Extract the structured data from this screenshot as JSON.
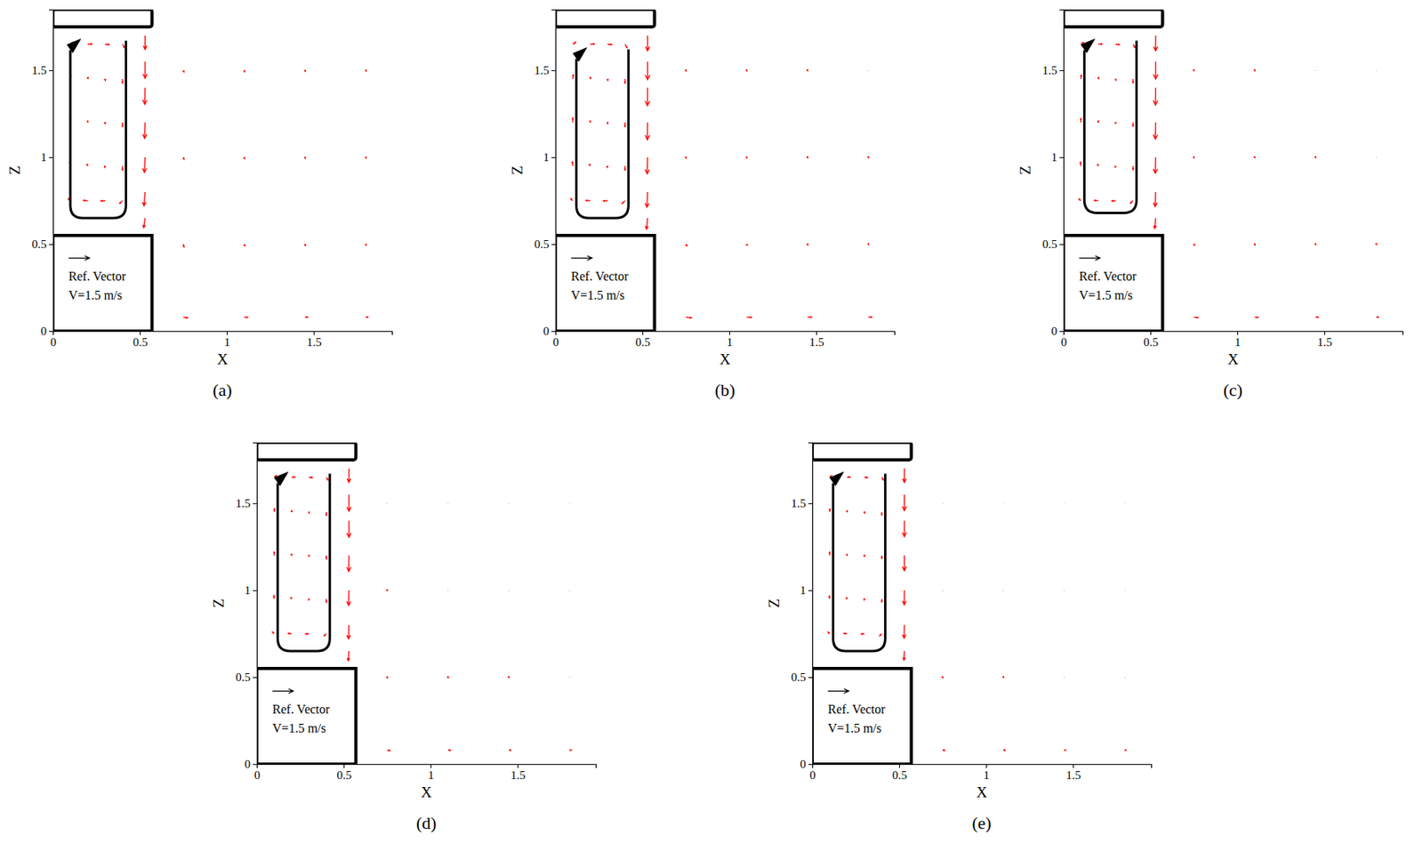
{
  "chart_data": [
    {
      "type": "quiver",
      "label": "(a)",
      "xlabel": "X",
      "ylabel": "Z",
      "color": "#ff0000",
      "xlim": [
        0,
        1.95
      ],
      "ylim": [
        0,
        1.85
      ],
      "xticks": [
        0,
        0.5,
        1,
        1.5
      ],
      "yticks": [
        0,
        0.5,
        1,
        1.5
      ],
      "ref_vector": {
        "label": "Ref. Vector",
        "value": 1.5,
        "value_label": "V=1.5 m/s"
      },
      "obstacles": [
        {
          "x": [
            0,
            0.57
          ],
          "y": [
            0,
            0.55
          ]
        },
        {
          "x": [
            0,
            0.57
          ],
          "y": [
            1.75,
            1.85
          ]
        }
      ],
      "loop": {
        "x": [
          0.1,
          0.42
        ],
        "y": [
          0.65,
          1.67
        ]
      },
      "x": [
        0.1,
        0.1,
        0.1,
        0.1,
        0.1,
        0.2,
        0.2,
        0.2,
        0.2,
        0.2,
        0.3,
        0.3,
        0.3,
        0.3,
        0.3,
        0.4,
        0.4,
        0.4,
        0.4,
        0.4,
        0.53,
        0.53,
        0.53,
        0.53,
        0.53,
        0.53,
        0.53,
        0.75,
        0.75,
        0.75,
        0.75,
        1.1,
        1.1,
        1.1,
        1.1,
        1.45,
        1.45,
        1.45,
        1.45,
        1.8,
        1.8,
        1.8,
        1.8
      ],
      "y": [
        0.75,
        0.95,
        1.2,
        1.45,
        1.65,
        0.75,
        0.95,
        1.2,
        1.45,
        1.65,
        0.75,
        0.95,
        1.2,
        1.45,
        1.65,
        0.75,
        0.95,
        1.2,
        1.45,
        1.65,
        1.7,
        1.55,
        1.4,
        1.2,
        1.0,
        0.8,
        0.65,
        0.08,
        0.5,
        1.0,
        1.5,
        0.08,
        0.5,
        1.0,
        1.5,
        0.08,
        0.5,
        1.0,
        1.5,
        0.08,
        0.5,
        1.0,
        1.5
      ],
      "u": [
        -0.15,
        -0.03,
        0,
        0.03,
        0.2,
        -0.3,
        -0.05,
        0,
        0.03,
        0.3,
        -0.3,
        -0.03,
        0,
        0.02,
        0.3,
        -0.2,
        0,
        0,
        0,
        0.15,
        0,
        0,
        -0.02,
        -0.03,
        -0.05,
        -0.08,
        -0.1,
        0.3,
        0.05,
        0.05,
        0.05,
        0.25,
        0.05,
        0.03,
        0.03,
        0.2,
        0.03,
        0.02,
        0.02,
        0.15,
        0.02,
        0.02,
        0.02
      ],
      "v": [
        0.15,
        0.3,
        0.32,
        0.3,
        0.15,
        0.02,
        0.12,
        0.12,
        0.12,
        0.02,
        -0.02,
        -0.1,
        -0.08,
        -0.1,
        -0.03,
        -0.2,
        -0.3,
        -0.3,
        -0.3,
        -0.25,
        -1.0,
        -1.2,
        -1.2,
        -1.15,
        -1.1,
        -1.0,
        -0.7,
        -0.05,
        -0.2,
        -0.15,
        -0.12,
        -0.02,
        -0.12,
        -0.1,
        -0.1,
        0,
        -0.1,
        -0.08,
        -0.08,
        0,
        -0.08,
        -0.06,
        -0.06
      ]
    },
    {
      "type": "quiver",
      "label": "(b)",
      "xlabel": "X",
      "ylabel": "Z",
      "color": "#ff0000",
      "xlim": [
        0,
        1.95
      ],
      "ylim": [
        0,
        1.85
      ],
      "xticks": [
        0,
        0.5,
        1,
        1.5
      ],
      "yticks": [
        0,
        0.5,
        1,
        1.5
      ],
      "ref_vector": {
        "label": "Ref. Vector",
        "value": 1.5,
        "value_label": "V=1.5 m/s"
      },
      "obstacles": [
        {
          "x": [
            0,
            0.57
          ],
          "y": [
            0,
            0.55
          ]
        },
        {
          "x": [
            0,
            0.57
          ],
          "y": [
            1.75,
            1.85
          ]
        }
      ],
      "loop": {
        "x": [
          0.12,
          0.42
        ],
        "y": [
          0.65,
          1.62
        ]
      },
      "x": [
        0.1,
        0.1,
        0.1,
        0.1,
        0.1,
        0.2,
        0.2,
        0.2,
        0.2,
        0.2,
        0.3,
        0.3,
        0.3,
        0.3,
        0.3,
        0.4,
        0.4,
        0.4,
        0.4,
        0.4,
        0.53,
        0.53,
        0.53,
        0.53,
        0.53,
        0.53,
        0.53,
        0.75,
        0.75,
        0.75,
        0.75,
        1.1,
        1.1,
        1.1,
        1.1,
        1.45,
        1.45,
        1.45,
        1.45,
        1.8,
        1.8,
        1.8,
        1.8
      ],
      "y": [
        0.75,
        0.95,
        1.2,
        1.45,
        1.65,
        0.75,
        0.95,
        1.2,
        1.45,
        1.65,
        0.75,
        0.95,
        1.2,
        1.45,
        1.65,
        0.75,
        0.95,
        1.2,
        1.45,
        1.65,
        1.7,
        1.55,
        1.4,
        1.2,
        1.0,
        0.8,
        0.65,
        0.08,
        0.5,
        1.0,
        1.5,
        0.08,
        0.5,
        1.0,
        1.5,
        0.08,
        0.5,
        1.0,
        1.5,
        0.08,
        0.5,
        1.0,
        1.5
      ],
      "u": [
        -0.15,
        -0.03,
        0,
        0.03,
        0.2,
        -0.3,
        -0.05,
        0,
        0.03,
        0.3,
        -0.3,
        -0.03,
        0,
        0.02,
        0.3,
        -0.2,
        0,
        0,
        0,
        0.15,
        0,
        0,
        -0.01,
        -0.02,
        -0.03,
        -0.05,
        -0.08,
        0.4,
        0.08,
        0.03,
        0.02,
        0.35,
        0.04,
        0.02,
        0.02,
        0.3,
        0.03,
        0.02,
        0.01,
        0.25,
        0.02,
        0.01,
        0.01
      ],
      "v": [
        0.15,
        0.3,
        0.32,
        0.3,
        0.15,
        0.02,
        0.12,
        0.12,
        0.12,
        0.02,
        -0.02,
        -0.1,
        -0.08,
        -0.1,
        -0.03,
        -0.2,
        -0.3,
        -0.3,
        -0.3,
        -0.25,
        -1.1,
        -1.3,
        -1.3,
        -1.25,
        -1.2,
        -1.1,
        -0.8,
        -0.05,
        -0.12,
        -0.06,
        -0.05,
        -0.02,
        -0.08,
        -0.05,
        -0.04,
        0,
        -0.06,
        -0.04,
        -0.03,
        0,
        -0.04,
        -0.03,
        -0.02
      ]
    },
    {
      "type": "quiver",
      "label": "(c)",
      "xlabel": "X",
      "ylabel": "Z",
      "color": "#ff0000",
      "xlim": [
        0,
        1.95
      ],
      "ylim": [
        0,
        1.85
      ],
      "xticks": [
        0,
        0.5,
        1,
        1.5
      ],
      "yticks": [
        0,
        0.5,
        1,
        1.5
      ],
      "ref_vector": {
        "label": "Ref. Vector",
        "value": 1.5,
        "value_label": "V=1.5 m/s"
      },
      "obstacles": [
        {
          "x": [
            0,
            0.57
          ],
          "y": [
            0,
            0.55
          ]
        },
        {
          "x": [
            0,
            0.57
          ],
          "y": [
            1.75,
            1.85
          ]
        }
      ],
      "loop": {
        "x": [
          0.12,
          0.42
        ],
        "y": [
          0.68,
          1.67
        ]
      },
      "x": [
        0.1,
        0.1,
        0.1,
        0.1,
        0.1,
        0.2,
        0.2,
        0.2,
        0.2,
        0.2,
        0.3,
        0.3,
        0.3,
        0.3,
        0.3,
        0.4,
        0.4,
        0.4,
        0.4,
        0.4,
        0.53,
        0.53,
        0.53,
        0.53,
        0.53,
        0.53,
        0.53,
        0.75,
        0.75,
        0.75,
        0.75,
        1.1,
        1.1,
        1.1,
        1.1,
        1.45,
        1.45,
        1.45,
        1.45,
        1.8,
        1.8,
        1.8,
        1.8
      ],
      "y": [
        0.75,
        0.95,
        1.2,
        1.45,
        1.65,
        0.75,
        0.95,
        1.2,
        1.45,
        1.65,
        0.75,
        0.95,
        1.2,
        1.45,
        1.65,
        0.75,
        0.95,
        1.2,
        1.45,
        1.65,
        1.7,
        1.55,
        1.4,
        1.2,
        1.0,
        0.8,
        0.65,
        0.08,
        0.5,
        1.0,
        1.5,
        0.08,
        0.5,
        1.0,
        1.5,
        0.08,
        0.5,
        1.0,
        1.5,
        0.08,
        0.5,
        1.0,
        1.5
      ],
      "u": [
        -0.13,
        -0.03,
        0,
        0.03,
        0.18,
        -0.27,
        -0.04,
        0,
        0.03,
        0.27,
        -0.27,
        -0.03,
        0,
        0.02,
        0.27,
        -0.18,
        0,
        0,
        0,
        0.13,
        0,
        0,
        -0.01,
        -0.02,
        -0.03,
        -0.04,
        -0.06,
        0.3,
        0.05,
        0.02,
        0.02,
        0.25,
        0.03,
        0.02,
        0.01,
        0.2,
        0.02,
        0.01,
        0.01,
        0.15,
        0.02,
        0.01,
        0.01
      ],
      "v": [
        0.13,
        0.27,
        0.29,
        0.27,
        0.13,
        0.02,
        0.11,
        0.11,
        0.11,
        0.02,
        -0.02,
        -0.09,
        -0.07,
        -0.09,
        -0.03,
        -0.18,
        -0.27,
        -0.27,
        -0.27,
        -0.22,
        -1.1,
        -1.25,
        -1.25,
        -1.2,
        -1.15,
        -1.05,
        -0.75,
        -0.04,
        -0.08,
        -0.04,
        -0.03,
        -0.02,
        -0.06,
        -0.03,
        -0.03,
        0,
        -0.04,
        -0.03,
        -0.02,
        0,
        -0.03,
        -0.02,
        -0.02
      ]
    },
    {
      "type": "quiver",
      "label": "(d)",
      "xlabel": "X",
      "ylabel": "Z",
      "color": "#ff0000",
      "xlim": [
        0,
        1.95
      ],
      "ylim": [
        0,
        1.85
      ],
      "xticks": [
        0,
        0.5,
        1,
        1.5
      ],
      "yticks": [
        0,
        0.5,
        1,
        1.5
      ],
      "ref_vector": {
        "label": "Ref. Vector",
        "value": 1.5,
        "value_label": "V=1.5 m/s"
      },
      "obstacles": [
        {
          "x": [
            0,
            0.57
          ],
          "y": [
            0,
            0.55
          ]
        },
        {
          "x": [
            0,
            0.57
          ],
          "y": [
            1.75,
            1.85
          ]
        }
      ],
      "loop": {
        "x": [
          0.12,
          0.42
        ],
        "y": [
          0.65,
          1.67
        ]
      },
      "x": [
        0.1,
        0.1,
        0.1,
        0.1,
        0.1,
        0.2,
        0.2,
        0.2,
        0.2,
        0.2,
        0.3,
        0.3,
        0.3,
        0.3,
        0.3,
        0.4,
        0.4,
        0.4,
        0.4,
        0.4,
        0.53,
        0.53,
        0.53,
        0.53,
        0.53,
        0.53,
        0.53,
        0.75,
        0.75,
        0.75,
        0.75,
        1.1,
        1.1,
        1.1,
        1.1,
        1.45,
        1.45,
        1.45,
        1.45,
        1.8,
        1.8,
        1.8,
        1.8
      ],
      "y": [
        0.75,
        0.95,
        1.2,
        1.45,
        1.65,
        0.75,
        0.95,
        1.2,
        1.45,
        1.65,
        0.75,
        0.95,
        1.2,
        1.45,
        1.65,
        0.75,
        0.95,
        1.2,
        1.45,
        1.65,
        1.7,
        1.55,
        1.4,
        1.2,
        1.0,
        0.8,
        0.65,
        0.08,
        0.5,
        1.0,
        1.5,
        0.08,
        0.5,
        1.0,
        1.5,
        0.08,
        0.5,
        1.0,
        1.5,
        0.08,
        0.5,
        1.0,
        1.5
      ],
      "u": [
        -0.12,
        -0.02,
        0,
        0.02,
        0.16,
        -0.24,
        -0.04,
        0,
        0.02,
        0.24,
        -0.24,
        -0.02,
        0,
        0.02,
        0.24,
        -0.16,
        0,
        0,
        0,
        0.12,
        0,
        0,
        0,
        -0.01,
        -0.02,
        -0.03,
        -0.05,
        0.2,
        0.03,
        0.02,
        0.01,
        0.18,
        0.02,
        0.01,
        0.01,
        0.15,
        0.02,
        0.01,
        0.01,
        0.12,
        0.01,
        0.01,
        0.01
      ],
      "v": [
        0.12,
        0.24,
        0.26,
        0.24,
        0.12,
        0.02,
        0.1,
        0.1,
        0.1,
        0.02,
        -0.02,
        -0.08,
        -0.06,
        -0.08,
        -0.02,
        -0.16,
        -0.24,
        -0.24,
        -0.24,
        -0.2,
        -1.0,
        -1.2,
        -1.2,
        -1.15,
        -1.1,
        -1.0,
        -0.7,
        -0.03,
        -0.05,
        -0.03,
        -0.02,
        -0.01,
        -0.04,
        -0.02,
        -0.02,
        0,
        -0.03,
        -0.02,
        -0.02,
        0,
        -0.02,
        -0.02,
        -0.01
      ]
    },
    {
      "type": "quiver",
      "label": "(e)",
      "xlabel": "X",
      "ylabel": "Z",
      "color": "#ff0000",
      "xlim": [
        0,
        1.95
      ],
      "ylim": [
        0,
        1.85
      ],
      "xticks": [
        0,
        0.5,
        1,
        1.5
      ],
      "yticks": [
        0,
        0.5,
        1,
        1.5
      ],
      "ref_vector": {
        "label": "Ref. Vector",
        "value": 1.5,
        "value_label": "V=1.5 m/s"
      },
      "obstacles": [
        {
          "x": [
            0,
            0.57
          ],
          "y": [
            0,
            0.55
          ]
        },
        {
          "x": [
            0,
            0.57
          ],
          "y": [
            1.75,
            1.85
          ]
        }
      ],
      "loop": {
        "x": [
          0.12,
          0.42
        ],
        "y": [
          0.65,
          1.67
        ]
      },
      "x": [
        0.1,
        0.1,
        0.1,
        0.1,
        0.1,
        0.2,
        0.2,
        0.2,
        0.2,
        0.2,
        0.3,
        0.3,
        0.3,
        0.3,
        0.3,
        0.4,
        0.4,
        0.4,
        0.4,
        0.4,
        0.53,
        0.53,
        0.53,
        0.53,
        0.53,
        0.53,
        0.53,
        0.75,
        0.75,
        0.75,
        0.75,
        1.1,
        1.1,
        1.1,
        1.1,
        1.45,
        1.45,
        1.45,
        1.45,
        1.8,
        1.8,
        1.8,
        1.8
      ],
      "y": [
        0.75,
        0.95,
        1.2,
        1.45,
        1.65,
        0.75,
        0.95,
        1.2,
        1.45,
        1.65,
        0.75,
        0.95,
        1.2,
        1.45,
        1.65,
        0.75,
        0.95,
        1.2,
        1.45,
        1.65,
        1.7,
        1.55,
        1.4,
        1.2,
        1.0,
        0.8,
        0.65,
        0.08,
        0.5,
        1.0,
        1.5,
        0.08,
        0.5,
        1.0,
        1.5,
        0.08,
        0.5,
        1.0,
        1.5,
        0.08,
        0.5,
        1.0,
        1.5
      ],
      "u": [
        -0.11,
        -0.02,
        0,
        0.02,
        0.15,
        -0.22,
        -0.04,
        0,
        0.02,
        0.22,
        -0.22,
        -0.02,
        0,
        0.02,
        0.22,
        -0.15,
        0,
        0,
        0,
        0.11,
        0,
        0,
        0,
        0,
        -0.01,
        -0.02,
        -0.03,
        0.15,
        0.02,
        0.01,
        0.01,
        0.12,
        0.02,
        0.01,
        0.01,
        0.1,
        0.01,
        0.01,
        0.01,
        0.08,
        0.01,
        0.01,
        0.01
      ],
      "v": [
        0.11,
        0.22,
        0.24,
        0.22,
        0.11,
        0.02,
        0.09,
        0.09,
        0.09,
        0.02,
        -0.02,
        -0.07,
        -0.06,
        -0.07,
        -0.02,
        -0.15,
        -0.22,
        -0.22,
        -0.22,
        -0.19,
        -1.0,
        -1.15,
        -1.15,
        -1.1,
        -1.05,
        -0.95,
        -0.65,
        -0.02,
        -0.04,
        -0.02,
        -0.02,
        -0.01,
        -0.03,
        -0.02,
        -0.01,
        0,
        -0.02,
        -0.02,
        -0.01,
        0,
        -0.02,
        -0.01,
        -0.01
      ]
    }
  ]
}
